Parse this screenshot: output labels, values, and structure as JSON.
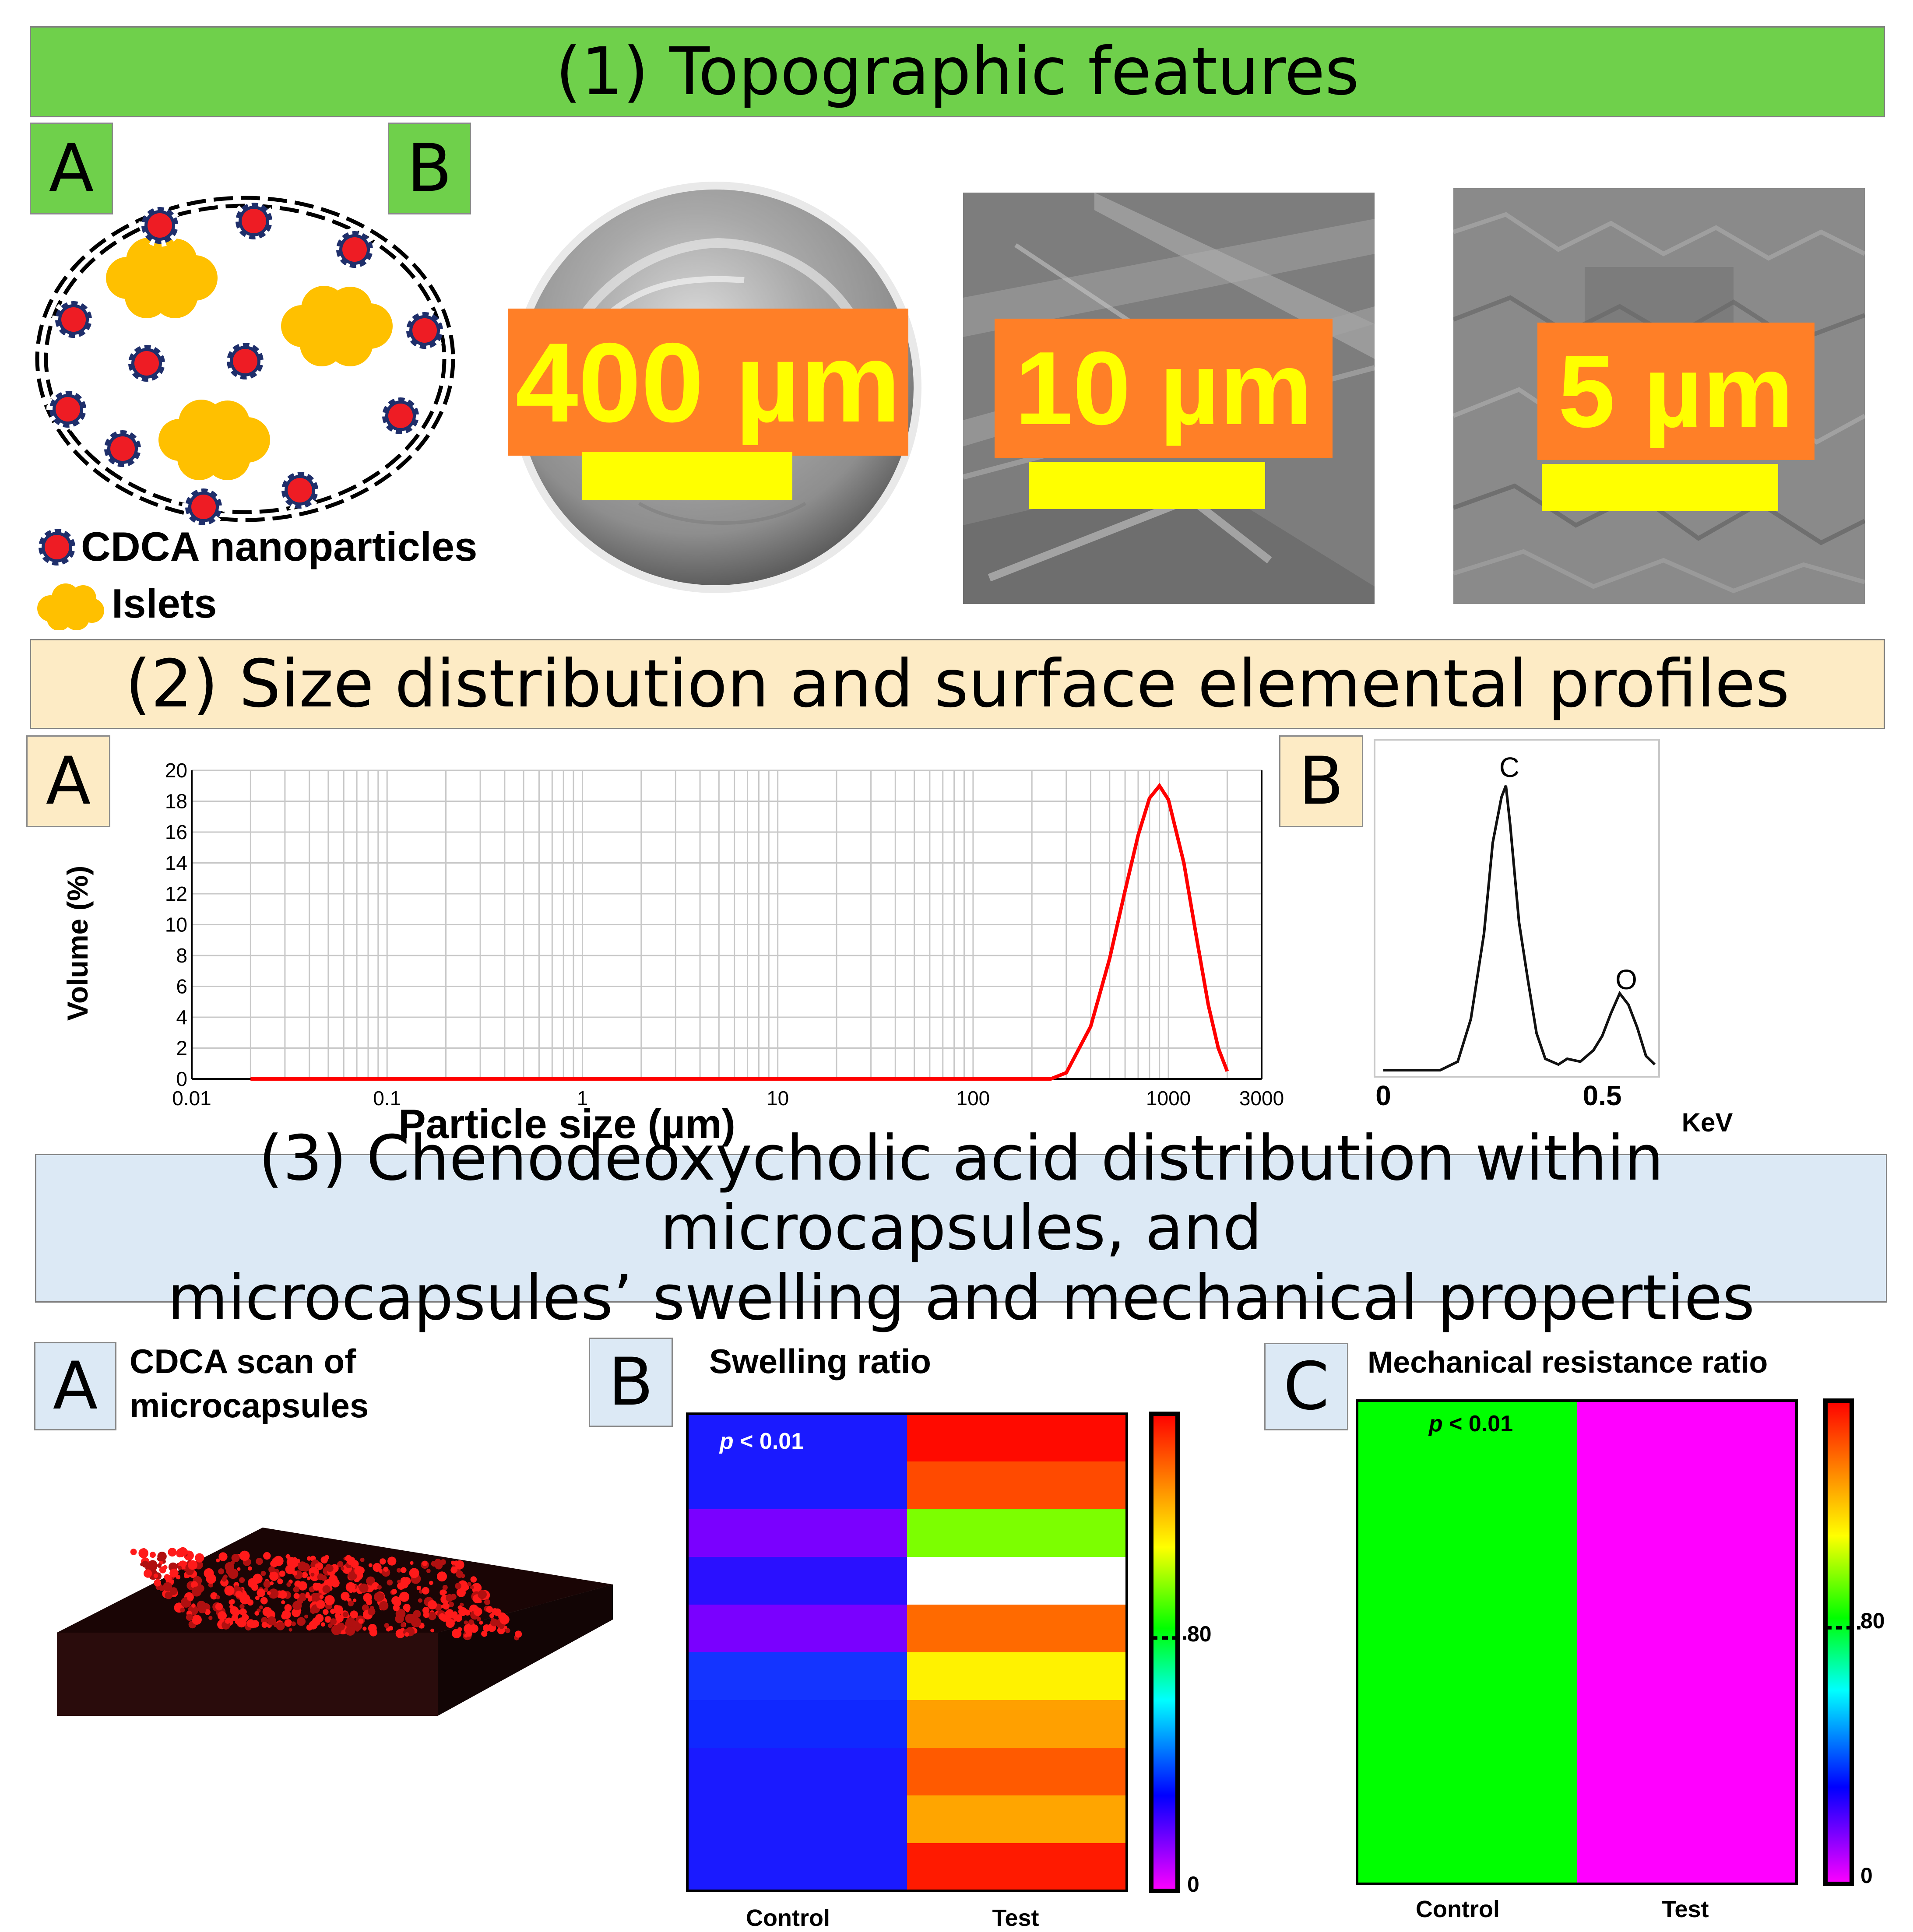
{
  "section1": {
    "title": "(1) Topographic features",
    "panel_a_label": "A",
    "panel_b_label": "B",
    "legend_nanoparticles": "CDCA nanoparticles",
    "legend_islets": "Islets",
    "scale_labels": [
      "400 µm",
      "10 µm",
      "5 µm"
    ]
  },
  "section2": {
    "title": "(2) Size distribution and surface elemental profiles",
    "panel_a_label": "A",
    "panel_b_label": "B",
    "eds": {
      "peak_c": "C",
      "peak_o": "O",
      "tick_0": "0",
      "tick_05": "0.5",
      "unit": "KeV"
    }
  },
  "section3": {
    "title_line1": "(3) Chenodeoxycholic acid distribution within microcapsules, and",
    "title_line2": "microcapsules’ swelling and mechanical properties",
    "panel_a_label": "A",
    "panel_a_title_line1": "CDCA scan of",
    "panel_a_title_line2": "microcapsules",
    "panel_b_label": "B",
    "panel_b_title": "Swelling ratio",
    "panel_c_label": "C",
    "panel_c_title": "Mechanical resistance ratio",
    "pvalue_prefix": "p",
    "pvalue_rest": " < 0.01",
    "x_control": "Control",
    "x_test": "Test",
    "colorbar_mid": "80",
    "colorbar_low": "0"
  },
  "colors": {
    "banner1": "#6fd04b",
    "banner2": "#fdebc5",
    "banner3": "#dce9f5",
    "scale_box": "#ff7f27",
    "scale_text": "#ffff00",
    "curve": "#ff0000",
    "nanoparticle": "#ee1c24",
    "islet": "#ffc000"
  },
  "chart_data": [
    {
      "type": "line",
      "xscale": "log",
      "xlabel": "Particle size (µm)",
      "ylabel": "Volume (%)",
      "xlim": [
        0.01,
        3000
      ],
      "ylim": [
        0,
        20
      ],
      "xticks": [
        "0.01",
        "0.1",
        "1",
        "10",
        "100",
        "1000",
        "3000"
      ],
      "yticks": [
        "0",
        "2",
        "4",
        "6",
        "8",
        "10",
        "12",
        "14",
        "16",
        "18",
        "20"
      ],
      "series": [
        {
          "x": [
            0.02,
            100,
            250,
            300,
            400,
            500,
            600,
            700,
            800,
            900,
            1000,
            1200,
            1400,
            1600,
            1800,
            2000
          ],
          "values": [
            0,
            0,
            0,
            0.4,
            3.4,
            7.8,
            12.2,
            15.8,
            18.2,
            19.0,
            18.1,
            14.0,
            9.0,
            4.8,
            2.0,
            0.5
          ]
        }
      ]
    },
    {
      "type": "line",
      "xlabel": "KeV",
      "xticks": [
        "0",
        "0.5"
      ],
      "annotations": [
        "C",
        "O"
      ],
      "series": [
        {
          "x": [
            0.0,
            0.13,
            0.17,
            0.2,
            0.23,
            0.25,
            0.27,
            0.28,
            0.29,
            0.31,
            0.33,
            0.35,
            0.37,
            0.4,
            0.42,
            0.45,
            0.48,
            0.5,
            0.52,
            0.54,
            0.56,
            0.58,
            0.6,
            0.62
          ],
          "values": [
            0,
            0,
            3,
            18,
            48,
            80,
            96,
            100,
            86,
            52,
            32,
            13,
            4,
            2,
            4,
            3,
            7,
            12,
            20,
            27,
            23,
            15,
            5,
            2
          ]
        }
      ]
    },
    {
      "type": "heatmap",
      "title": "Swelling ratio",
      "categories": [
        "Control",
        "Test"
      ],
      "colors": [
        [
          "#1a1aff",
          "#ff0a00"
        ],
        [
          "#1a1aff",
          "#ff4a00"
        ],
        [
          "#7a00ff",
          "#7cff00"
        ],
        [
          "#2a10ff",
          "#ffffff"
        ],
        [
          "#7a00ff",
          "#ff6a00"
        ],
        [
          "#1434ff",
          "#fff200"
        ],
        [
          "#1028ff",
          "#ffa000"
        ],
        [
          "#1a1aff",
          "#ff5a00"
        ],
        [
          "#1a1aff",
          "#ffa500"
        ],
        [
          "#1a1aff",
          "#ff1a00"
        ]
      ],
      "annotation": "p < 0.01",
      "colorbar_ticks": [
        "0",
        "80"
      ]
    },
    {
      "type": "heatmap",
      "title": "Mechanical resistance ratio",
      "categories": [
        "Control",
        "Test"
      ],
      "colors": [
        [
          "#00ff00",
          "#ff00ff"
        ]
      ],
      "annotation": "p < 0.01",
      "colorbar_ticks": [
        "0",
        "80"
      ]
    }
  ]
}
